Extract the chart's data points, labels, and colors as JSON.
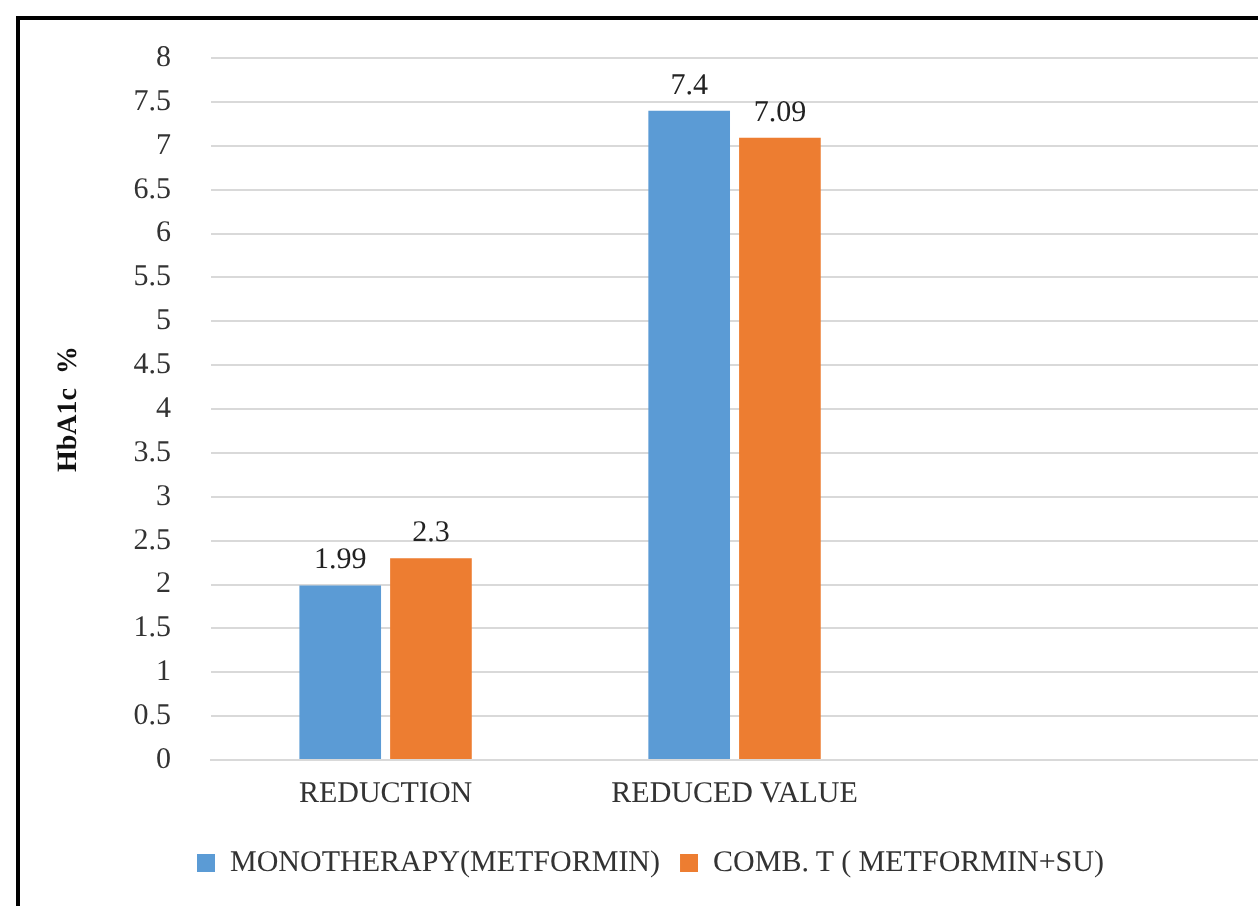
{
  "chart_data": {
    "type": "bar",
    "ylabel": "HbA1c  %",
    "categories": [
      "REDUCTION",
      "REDUCED VALUE",
      null
    ],
    "series": [
      {
        "name": "MONOTHERAPY(METFORMIN)",
        "color": "#5b9bd5",
        "values": [
          1.99,
          7.4,
          null
        ]
      },
      {
        "name": "COMB. T ( METFORMIN+SU)",
        "color": "#ed7d31",
        "values": [
          2.3,
          7.09,
          null
        ]
      }
    ],
    "ylim": [
      0,
      8
    ],
    "yticks": [
      0,
      0.5,
      1,
      1.5,
      2,
      2.5,
      3,
      3.5,
      4,
      4.5,
      5,
      5.5,
      6,
      6.5,
      7,
      7.5,
      8
    ],
    "grid": "y",
    "legend": "bottom",
    "data_labels": true
  }
}
